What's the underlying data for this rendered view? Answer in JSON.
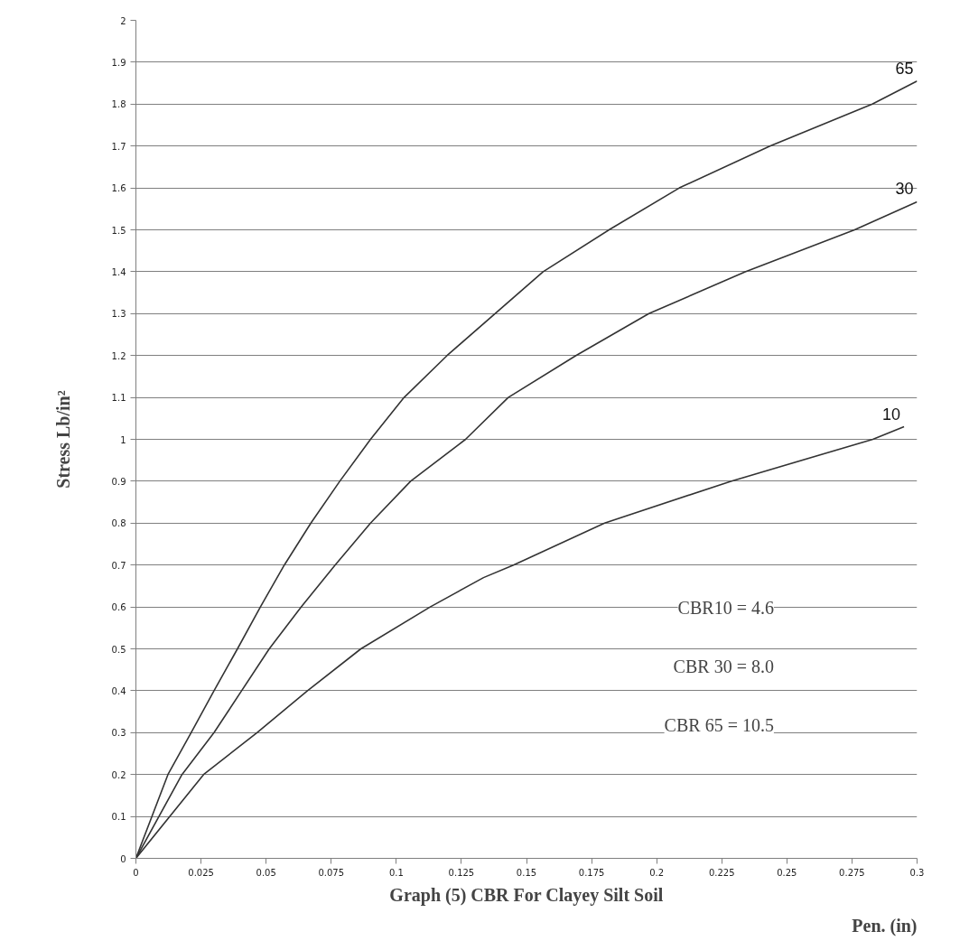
{
  "chart_data": {
    "type": "line",
    "title": "Graph (5) CBR For Clayey Silt Soil",
    "xlabel": "Pen. (in)",
    "ylabel": "Stress Lb/in²",
    "xlim": [
      0,
      0.3
    ],
    "ylim": [
      0,
      2
    ],
    "xticks": [
      0,
      0.025,
      0.05,
      0.075,
      0.1,
      0.125,
      0.15,
      0.175,
      0.2,
      0.225,
      0.25,
      0.275,
      0.3
    ],
    "yticks": [
      0,
      0.1,
      0.2,
      0.3,
      0.4,
      0.5,
      0.6,
      0.7,
      0.8,
      0.9,
      1,
      1.1,
      1.2,
      1.3,
      1.4,
      1.5,
      1.6,
      1.7,
      1.8,
      1.9,
      2
    ],
    "grid": "y",
    "legend": false,
    "marker": "none",
    "line_style": "solid",
    "series": [
      {
        "name": "65",
        "color": "#333333",
        "x": [
          0,
          0.0123,
          0.0212,
          0.03,
          0.039,
          0.0478,
          0.057,
          0.0672,
          0.0783,
          0.0901,
          0.103,
          0.1195,
          0.1564,
          0.1817,
          0.2087,
          0.2435,
          0.2828,
          0.3
        ],
        "values": [
          0,
          0.2,
          0.3,
          0.4,
          0.5,
          0.6,
          0.7,
          0.8,
          0.9,
          1.0,
          1.1,
          1.2,
          1.4,
          1.5,
          1.6,
          1.7,
          1.8,
          1.855
        ]
      },
      {
        "name": "30",
        "color": "#333333",
        "x": [
          0,
          0.0177,
          0.03,
          0.0406,
          0.0512,
          0.0635,
          0.0765,
          0.0901,
          0.1055,
          0.1266,
          0.143,
          0.169,
          0.197,
          0.234,
          0.276,
          0.3
        ],
        "values": [
          0,
          0.2,
          0.3,
          0.4,
          0.5,
          0.6,
          0.7,
          0.8,
          0.9,
          1.0,
          1.1,
          1.2,
          1.3,
          1.4,
          1.5,
          1.567
        ]
      },
      {
        "name": "10",
        "color": "#333333",
        "x": [
          0,
          0.026,
          0.0465,
          0.0659,
          0.0864,
          0.113,
          0.1335,
          0.145,
          0.18,
          0.2285,
          0.283,
          0.295
        ],
        "values": [
          0,
          0.2,
          0.3,
          0.4,
          0.5,
          0.6,
          0.67,
          0.7,
          0.8,
          0.9,
          1.0,
          1.03
        ]
      }
    ],
    "annotations": [
      "CBR10 = 4.6",
      "CBR 30 = 8.0",
      "CBR 65 = 10.5"
    ]
  }
}
